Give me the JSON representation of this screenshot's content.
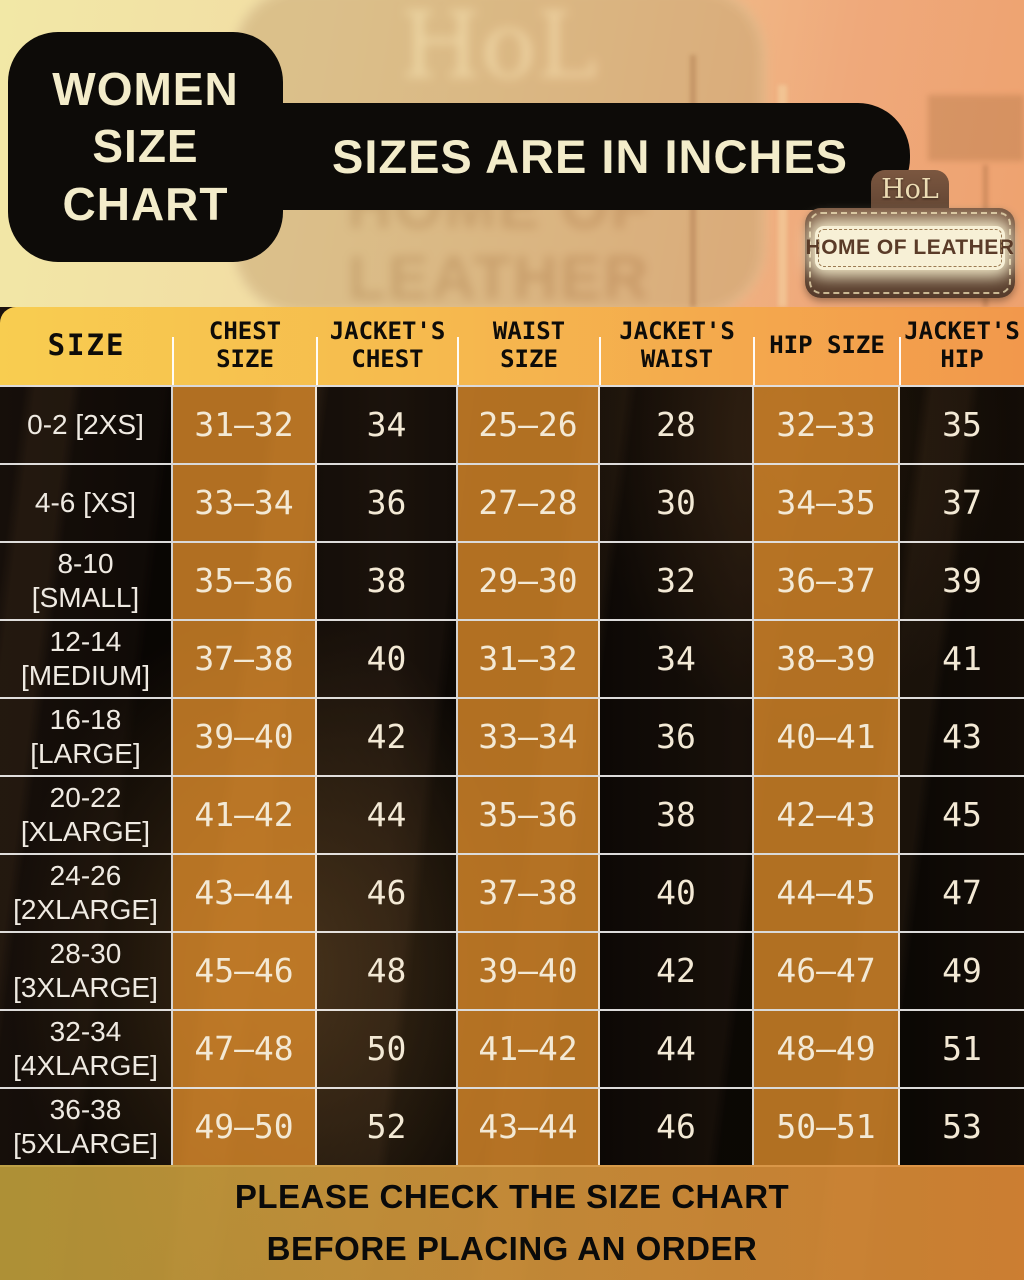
{
  "title": {
    "text": "WOMEN SIZE CHART"
  },
  "units_banner": "SIZES ARE IN INCHES",
  "brand_badge": {
    "monogram": "HoL",
    "name": "HOME OF LEATHER"
  },
  "background_watermark": {
    "monogram": "HoL",
    "name": "HOME OF LEATHER"
  },
  "chart_data": {
    "type": "table",
    "title": "WOMEN SIZE CHART",
    "subtitle": "SIZES ARE IN INCHES",
    "units": "inches",
    "columns": [
      "SIZE",
      "CHEST SIZE",
      "JACKET'S CHEST",
      "WAIST SIZE",
      "JACKET'S WAIST",
      "HIP SIZE",
      "JACKET'S HIP"
    ],
    "rows": [
      [
        "0-2 [2XS]",
        "31–32",
        "34",
        "25–26",
        "28",
        "32–33",
        "35"
      ],
      [
        "4-6 [XS]",
        "33–34",
        "36",
        "27–28",
        "30",
        "34–35",
        "37"
      ],
      [
        "8-10\n[SMALL]",
        "35–36",
        "38",
        "29–30",
        "32",
        "36–37",
        "39"
      ],
      [
        "12-14\n[MEDIUM]",
        "37–38",
        "40",
        "31–32",
        "34",
        "38–39",
        "41"
      ],
      [
        "16-18\n[LARGE]",
        "39–40",
        "42",
        "33–34",
        "36",
        "40–41",
        "43"
      ],
      [
        "20-22\n[XLARGE]",
        "41–42",
        "44",
        "35–36",
        "38",
        "42–43",
        "45"
      ],
      [
        "24-26\n[2XLARGE]",
        "43–44",
        "46",
        "37–38",
        "40",
        "44–45",
        "47"
      ],
      [
        "28-30\n[3XLARGE]",
        "45–46",
        "48",
        "39–40",
        "42",
        "46–47",
        "49"
      ],
      [
        "32-34\n[4XLARGE]",
        "47–48",
        "50",
        "41–42",
        "44",
        "48–49",
        "51"
      ],
      [
        "36-38\n[5XLARGE]",
        "49–50",
        "52",
        "43–44",
        "46",
        "50–51",
        "53"
      ]
    ]
  },
  "footer": {
    "line1": "PLEASE CHECK THE SIZE CHART",
    "line2": "BEFORE PLACING AN ORDER"
  },
  "colors": {
    "banner_black": "#0d0b08",
    "cream_text": "#f3ecca",
    "header_gradient_start": "#f8cd50",
    "header_gradient_end": "#f2984c",
    "column_tint_orange": "#cd812a",
    "grid_line": "#ffffff",
    "footer_gradient_start": "#ba9b3a",
    "footer_gradient_end": "#df8a36",
    "badge_brown": "#6b4a35",
    "badge_plate": "#f7f0d6"
  }
}
